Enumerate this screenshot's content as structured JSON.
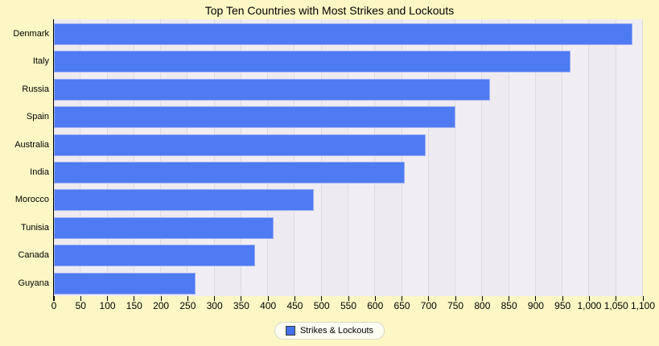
{
  "title": "Top Ten Countries with Most Strikes and Lockouts",
  "legend": {
    "label": "Strikes & Lockouts"
  },
  "x_axis": {
    "tick_labels": [
      "0",
      "50",
      "100",
      "150",
      "200",
      "250",
      "300",
      "350",
      "400",
      "450",
      "500",
      "550",
      "600",
      "650",
      "700",
      "750",
      "800",
      "850",
      "900",
      "950",
      "1,000",
      "1,050",
      "1,100"
    ]
  },
  "chart_data": {
    "type": "bar",
    "orientation": "horizontal",
    "title": "Top Ten Countries with Most Strikes and Lockouts",
    "categories": [
      "Denmark",
      "Italy",
      "Russia",
      "Spain",
      "Australia",
      "India",
      "Morocco",
      "Tunisia",
      "Canada",
      "Guyana"
    ],
    "series": [
      {
        "name": "Strikes & Lockouts",
        "values": [
          1080,
          965,
          815,
          750,
          695,
          655,
          485,
          410,
          375,
          265
        ]
      }
    ],
    "xlim": [
      0,
      1100
    ],
    "x_tick_step": 50,
    "grid": true,
    "legend_position": "bottom",
    "colors": {
      "page_bg": "#FCF7C5",
      "plot_bg": "#F0EDF3",
      "plot_band_alt": "#EDEAF0",
      "gridline": "#DEDAE0",
      "bar": "#4E7BF1",
      "bar_border": "#9AADF4",
      "axis": "#000000",
      "legend_bg": "#FDFCF2",
      "legend_border": "#DCD8CB",
      "swatch": "#4470EC"
    }
  }
}
